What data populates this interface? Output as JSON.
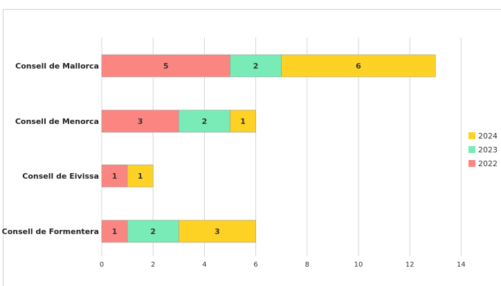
{
  "chart_data": {
    "type": "bar",
    "orientation": "horizontal",
    "stacked": true,
    "categories": [
      "Consell de Mallorca",
      "Consell de Menorca",
      "Consell de Eivissa",
      "Consell de Formentera"
    ],
    "series": [
      {
        "name": "2022",
        "values": [
          5,
          3,
          1,
          1
        ],
        "color": "#fb8580"
      },
      {
        "name": "2023",
        "values": [
          2,
          2,
          0,
          2
        ],
        "color": "#78ebb6"
      },
      {
        "name": "2024",
        "values": [
          6,
          1,
          1,
          3
        ],
        "color": "#fdd225"
      }
    ],
    "xlim": [
      0,
      14
    ],
    "xticks": [
      0,
      2,
      4,
      6,
      8,
      10,
      12,
      14
    ],
    "grid": true,
    "data_labels": true,
    "legend": {
      "position": "right",
      "order": [
        "2024",
        "2023",
        "2022"
      ]
    }
  }
}
